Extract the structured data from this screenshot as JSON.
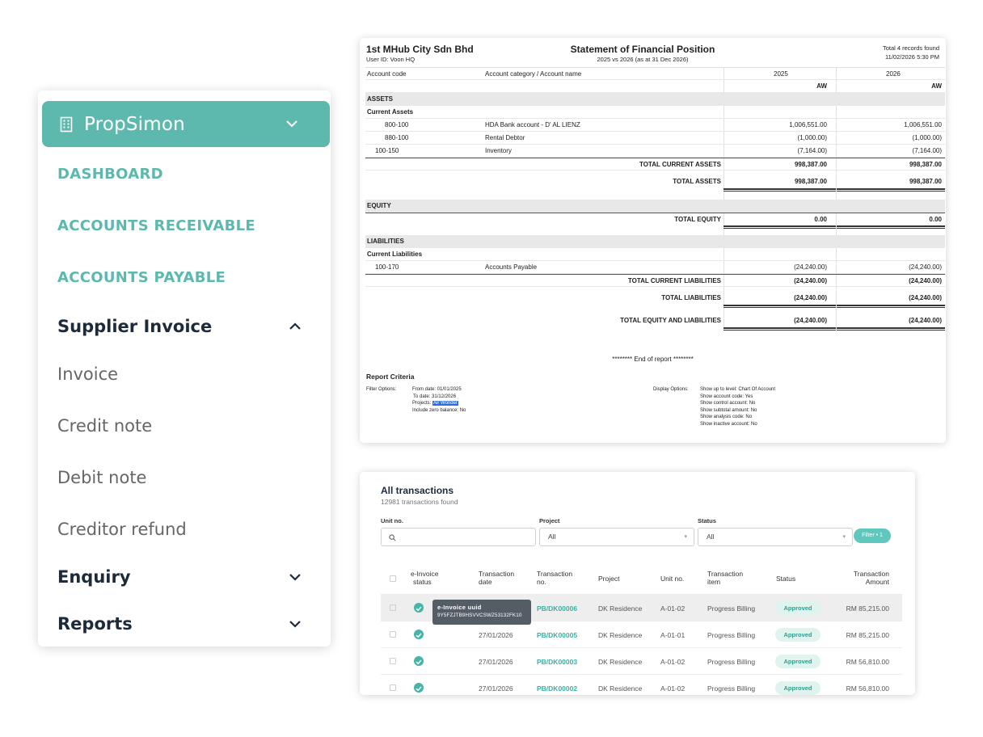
{
  "sidebar": {
    "org_name": "PropSimon",
    "main_items": [
      "DASHBOARD",
      "ACCOUNTS RECEIVABLE",
      "ACCOUNTS PAYABLE"
    ],
    "supplier_invoice": {
      "label": "Supplier Invoice",
      "items": [
        "Invoice",
        "Credit note",
        "Debit note",
        "Creditor refund"
      ]
    },
    "enquiry_label": "Enquiry",
    "reports_label": "Reports",
    "accent_color": "#5db8ad"
  },
  "statement": {
    "company": "1st MHub City Sdn Bhd",
    "user": "User ID: Voon HQ",
    "title": "Statement of Financial Position",
    "subtitle": "2025 vs 2026 (as at 31 Dec 2026)",
    "records": "Total 4 records found",
    "printed": "11/02/2026 5:30 PM",
    "col_code": "Account code",
    "col_name": "Account category / Account name",
    "col_y1": "2025",
    "col_y2": "2026",
    "col_project": "AW",
    "assets": "ASSETS",
    "current_assets": "Current Assets",
    "asset_rows": [
      {
        "code": "800-100",
        "name": "HDA Bank account - D' AL LIENZ",
        "y1": "1,006,551.00",
        "y2": "1,006,551.00"
      },
      {
        "code": "880-100",
        "name": "Rental Debtor",
        "y1": "(1,000.00)",
        "y2": "(1,000.00)"
      },
      {
        "code": "100-150",
        "name": "Inventory",
        "y1": "(7,164.00)",
        "y2": "(7,164.00)"
      }
    ],
    "total_current_assets": {
      "label": "TOTAL CURRENT ASSETS",
      "y1": "998,387.00",
      "y2": "998,387.00"
    },
    "total_assets": {
      "label": "TOTAL ASSETS",
      "y1": "998,387.00",
      "y2": "998,387.00"
    },
    "equity": "EQUITY",
    "total_equity": {
      "label": "TOTAL EQUITY",
      "y1": "0.00",
      "y2": "0.00"
    },
    "liabilities": "LIABILITIES",
    "current_liabilities": "Current Liabilities",
    "liability_rows": [
      {
        "code": "100-170",
        "name": "Accounts Payable",
        "y1": "(24,240.00)",
        "y2": "(24,240.00)"
      }
    ],
    "total_current_liabilities": {
      "label": "TOTAL CURRENT LIABILITIES",
      "y1": "(24,240.00)",
      "y2": "(24,240.00)"
    },
    "total_liabilities": {
      "label": "TOTAL LIABILITIES",
      "y1": "(24,240.00)",
      "y2": "(24,240.00)"
    },
    "total_eq_liab": {
      "label": "TOTAL EQUITY AND LIABILITIES",
      "y1": "(24,240.00)",
      "y2": "(24,240.00)"
    },
    "end_of_report": "********  End of report  ********",
    "criteria_title": "Report Criteria",
    "filter_options_label": "Filter Options:",
    "filter_from": "From date: 01/01/2025",
    "filter_to": "To date: 31/12/2026",
    "filter_projects_label": "Projects:",
    "filter_projects_value": "Air Wonder",
    "filter_zero": "Include zero balance: No",
    "display_options_label": "Display Options:",
    "display_opts": [
      "Show up to level: Chart Of Account",
      "Show account code: Yes",
      "Show control account: No",
      "Show subtotal amount: No",
      "Show analysis code: No",
      "Show inactive account: No"
    ]
  },
  "transactions": {
    "title": "All transactions",
    "count": "12981 transactions found",
    "unit_label": "Unit no.",
    "project_label": "Project",
    "project_value": "All",
    "status_label": "Status",
    "status_value": "All",
    "filter_button": "Filter • 1",
    "headers": {
      "einv1": "e-Invoice",
      "einv2": "status",
      "date1": "Transaction",
      "date2": "date",
      "no1": "Transaction",
      "no2": "no.",
      "project": "Project",
      "unit": "Unit no.",
      "item1": "Transaction",
      "item2": "item",
      "status": "Status",
      "amount1": "Transaction",
      "amount2": "Amount"
    },
    "rows": [
      {
        "date": "",
        "no": "PB/DK00006",
        "project": "DK Residence",
        "unit": "A-01-02",
        "item": "Progress Billing",
        "status": "Approved",
        "amount": "RM 85,215.00"
      },
      {
        "date": "27/01/2026",
        "no": "PB/DK00005",
        "project": "DK Residence",
        "unit": "A-01-01",
        "item": "Progress Billing",
        "status": "Approved",
        "amount": "RM 85,215.00"
      },
      {
        "date": "27/01/2026",
        "no": "PB/DK00003",
        "project": "DK Residence",
        "unit": "A-01-02",
        "item": "Progress Billing",
        "status": "Approved",
        "amount": "RM 56,810.00"
      },
      {
        "date": "27/01/2026",
        "no": "PB/DK00002",
        "project": "DK Residence",
        "unit": "A-01-02",
        "item": "Progress Billing",
        "status": "Approved",
        "amount": "RM 56,810.00"
      }
    ],
    "tooltip_title": "e-Invoice uuid",
    "tooltip_value": "9Y5FZJTB9HSVVCSWZ53132FK10"
  }
}
